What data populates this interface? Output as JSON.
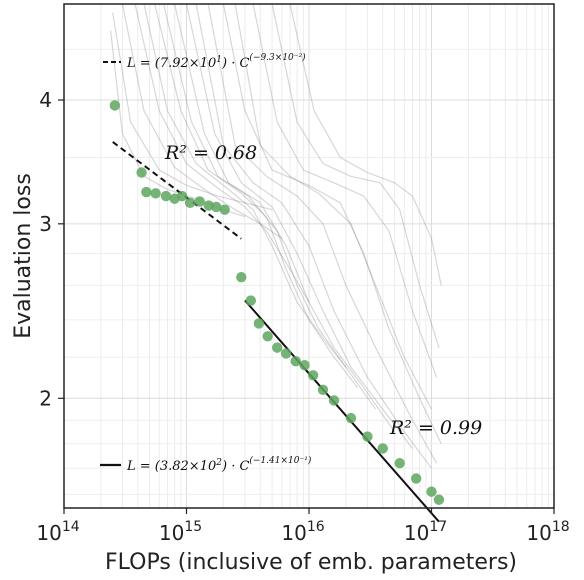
{
  "chart_data": {
    "type": "scatter",
    "xlabel": "FLOPs (inclusive of emb. parameters)",
    "ylabel": "Evaluation loss",
    "x_scale": "log",
    "y_scale": "log",
    "xlim": [
      100000000000000.0,
      1e+18
    ],
    "ylim": [
      1.55,
      5.0
    ],
    "x_ticks": [
      {
        "value": 100000000000000.0,
        "base": "10",
        "exp": "14"
      },
      {
        "value": 1000000000000000.0,
        "base": "10",
        "exp": "15"
      },
      {
        "value": 1e+16,
        "base": "10",
        "exp": "16"
      },
      {
        "value": 1e+17,
        "base": "10",
        "exp": "17"
      },
      {
        "value": 1e+18,
        "base": "10",
        "exp": "18"
      }
    ],
    "y_ticks": [
      {
        "value": 2,
        "label": "2"
      },
      {
        "value": 3,
        "label": "3"
      },
      {
        "value": 4,
        "label": "4"
      }
    ],
    "grid": true,
    "legend_position": "top-left and bottom-left",
    "colors": {
      "points": "#5ea65e",
      "curves": "#7a7a7a",
      "fit": "#111111",
      "grid": "#e0e0e0"
    },
    "frontier_points": {
      "x": [
        260000000000000.0,
        430000000000000.0,
        470000000000000.0,
        560000000000000.0,
        680000000000000.0,
        800000000000000.0,
        920000000000000.0,
        1070000000000000.0,
        1280000000000000.0,
        1520000000000000.0,
        1750000000000000.0,
        2050000000000000.0,
        2800000000000000.0,
        3350000000000000.0,
        3900000000000000.0,
        4600000000000000.0,
        5500000000000000.0,
        6500000000000000.0,
        7800000000000000.0,
        9200000000000000.0,
        1.08e+16,
        1.3e+16,
        1.6e+16,
        2.2e+16,
        3e+16,
        4e+16,
        5.5e+16,
        7.5e+16,
        1e+17,
        1.15e+17
      ],
      "y": [
        3.95,
        3.38,
        3.23,
        3.22,
        3.2,
        3.18,
        3.2,
        3.15,
        3.16,
        3.13,
        3.12,
        3.1,
        2.65,
        2.51,
        2.38,
        2.31,
        2.25,
        2.22,
        2.18,
        2.16,
        2.11,
        2.04,
        1.99,
        1.91,
        1.83,
        1.78,
        1.72,
        1.66,
        1.61,
        1.58
      ]
    },
    "fits": [
      {
        "name": "L = (7.92×10¹) · C^(−9.3×10⁻²)",
        "a": 79.2,
        "b": -0.093,
        "x_range": [
          250000000000000.0,
          2800000000000000.0
        ],
        "style": "dashed",
        "r2": "R² = 0.68"
      },
      {
        "name": "L = (3.82×10²) · C^(−1.41×10⁻¹)",
        "a": 382,
        "b": -0.141,
        "x_range": [
          3000000000000000.0,
          1.15e+17
        ],
        "style": "solid",
        "r2": "R² = 0.99"
      }
    ],
    "training_curves": [
      [
        [
          240000000000000.0,
          4.7
        ],
        [
          300000000000000.0,
          3.7
        ],
        [
          450000000000000.0,
          3.35
        ],
        [
          700000000000000.0,
          3.25
        ],
        [
          1200000000000000.0,
          3.18
        ],
        [
          2000000000000000.0,
          3.1
        ],
        [
          3000000000000000.0,
          3.05
        ]
      ],
      [
        [
          250000000000000.0,
          4.9
        ],
        [
          350000000000000.0,
          3.8
        ],
        [
          600000000000000.0,
          3.4
        ],
        [
          1000000000000000.0,
          3.28
        ],
        [
          1800000000000000.0,
          3.2
        ],
        [
          3000000000000000.0,
          3.15
        ],
        [
          5000000000000000.0,
          3.1
        ]
      ],
      [
        [
          300000000000000.0,
          5.0
        ],
        [
          450000000000000.0,
          3.9
        ],
        [
          800000000000000.0,
          3.42
        ],
        [
          1400000000000000.0,
          3.25
        ],
        [
          2500000000000000.0,
          3.1
        ],
        [
          4000000000000000.0,
          3.0
        ],
        [
          6000000000000000.0,
          2.9
        ]
      ],
      [
        [
          380000000000000.0,
          5.0
        ],
        [
          600000000000000.0,
          3.9
        ],
        [
          1000000000000000.0,
          3.45
        ],
        [
          1800000000000000.0,
          3.26
        ],
        [
          3000000000000000.0,
          3.12
        ],
        [
          4500000000000000.0,
          2.95
        ],
        [
          7000000000000000.0,
          2.7
        ],
        [
          1e+16,
          2.5
        ]
      ],
      [
        [
          450000000000000.0,
          5.0
        ],
        [
          700000000000000.0,
          3.9
        ],
        [
          1200000000000000.0,
          3.45
        ],
        [
          2200000000000000.0,
          3.25
        ],
        [
          3500000000000000.0,
          3.1
        ],
        [
          5000000000000000.0,
          2.85
        ],
        [
          8000000000000000.0,
          2.5
        ],
        [
          1.3e+16,
          2.3
        ],
        [
          2e+16,
          2.15
        ]
      ],
      [
        [
          550000000000000.0,
          5.0
        ],
        [
          900000000000000.0,
          3.9
        ],
        [
          1500000000000000.0,
          3.4
        ],
        [
          2800000000000000.0,
          3.22
        ],
        [
          4500000000000000.0,
          3.05
        ],
        [
          6500000000000000.0,
          2.7
        ],
        [
          1e+16,
          2.4
        ],
        [
          1.6e+16,
          2.2
        ],
        [
          2.5e+16,
          2.05
        ]
      ],
      [
        [
          650000000000000.0,
          5.0
        ],
        [
          1100000000000000.0,
          3.8
        ],
        [
          1800000000000000.0,
          3.35
        ],
        [
          3200000000000000.0,
          3.2
        ],
        [
          5500000000000000.0,
          2.95
        ],
        [
          8000000000000000.0,
          2.6
        ],
        [
          1.2e+16,
          2.35
        ],
        [
          2e+16,
          2.15
        ],
        [
          3.5e+16,
          1.95
        ]
      ],
      [
        [
          800000000000000.0,
          5.0
        ],
        [
          1400000000000000.0,
          3.7
        ],
        [
          2200000000000000.0,
          3.3
        ],
        [
          4000000000000000.0,
          3.15
        ],
        [
          6500000000000000.0,
          2.85
        ],
        [
          1e+16,
          2.5
        ],
        [
          1.6e+16,
          2.25
        ],
        [
          2.8e+16,
          2.05
        ],
        [
          5e+16,
          1.85
        ]
      ],
      [
        [
          1000000000000000.0,
          5.0
        ],
        [
          1700000000000000.0,
          3.7
        ],
        [
          2800000000000000.0,
          3.3
        ],
        [
          5000000000000000.0,
          3.12
        ],
        [
          8000000000000000.0,
          2.8
        ],
        [
          1.3e+16,
          2.45
        ],
        [
          2.2e+16,
          2.15
        ],
        [
          4e+16,
          1.95
        ],
        [
          7e+16,
          1.78
        ]
      ],
      [
        [
          1200000000000000.0,
          5.0
        ],
        [
          2000000000000000.0,
          3.6
        ],
        [
          3500000000000000.0,
          3.3
        ],
        [
          6000000000000000.0,
          3.15
        ],
        [
          1e+16,
          2.85
        ],
        [
          1.6e+16,
          2.45
        ],
        [
          3e+16,
          2.1
        ],
        [
          6e+16,
          1.85
        ],
        [
          1e+17,
          1.7
        ]
      ],
      [
        [
          1500000000000000.0,
          5.0
        ],
        [
          2500000000000000.0,
          3.6
        ],
        [
          4500000000000000.0,
          3.35
        ],
        [
          8000000000000000.0,
          3.2
        ],
        [
          1.3e+16,
          3.0
        ],
        [
          2e+16,
          2.6
        ],
        [
          3.5e+16,
          2.25
        ],
        [
          7e+16,
          1.9
        ],
        [
          1.1e+17,
          1.72
        ]
      ],
      [
        [
          2000000000000000.0,
          5.0
        ],
        [
          3000000000000000.0,
          3.9
        ],
        [
          5000000000000000.0,
          3.4
        ],
        [
          1e+16,
          3.28
        ],
        [
          1.8e+16,
          3.15
        ],
        [
          2.8e+16,
          2.8
        ],
        [
          4.5e+16,
          2.35
        ],
        [
          8e+16,
          2.0
        ],
        [
          1.2e+17,
          1.8
        ]
      ],
      [
        [
          2500000000000000.0,
          5.0
        ],
        [
          4000000000000000.0,
          3.6
        ],
        [
          7000000000000000.0,
          3.35
        ],
        [
          1.2e+16,
          3.22
        ],
        [
          2.2e+16,
          3.0
        ],
        [
          3.5e+16,
          2.6
        ],
        [
          6e+16,
          2.2
        ],
        [
          1e+17,
          1.95
        ]
      ],
      [
        [
          3500000000000000.0,
          5.0
        ],
        [
          5500000000000000.0,
          3.8
        ],
        [
          9000000000000000.0,
          3.4
        ],
        [
          1.6e+16,
          3.3
        ],
        [
          2.8e+16,
          3.2
        ],
        [
          4.5e+16,
          2.95
        ],
        [
          7e+16,
          2.45
        ],
        [
          1.1e+17,
          2.1
        ]
      ],
      [
        [
          5000000000000000.0,
          5.0
        ],
        [
          8000000000000000.0,
          3.8
        ],
        [
          1.3e+16,
          3.45
        ],
        [
          2.2e+16,
          3.35
        ],
        [
          3.8e+16,
          3.3
        ],
        [
          5.5e+16,
          3.1
        ],
        [
          8e+16,
          2.6
        ],
        [
          1.15e+17,
          2.25
        ]
      ],
      [
        [
          7000000000000000.0,
          5.0
        ],
        [
          1.1e+16,
          3.9
        ],
        [
          1.8e+16,
          3.5
        ],
        [
          3e+16,
          3.38
        ],
        [
          5e+16,
          3.3
        ],
        [
          7e+16,
          3.2
        ],
        [
          1e+17,
          2.9
        ],
        [
          1.2e+17,
          2.6
        ]
      ]
    ]
  }
}
